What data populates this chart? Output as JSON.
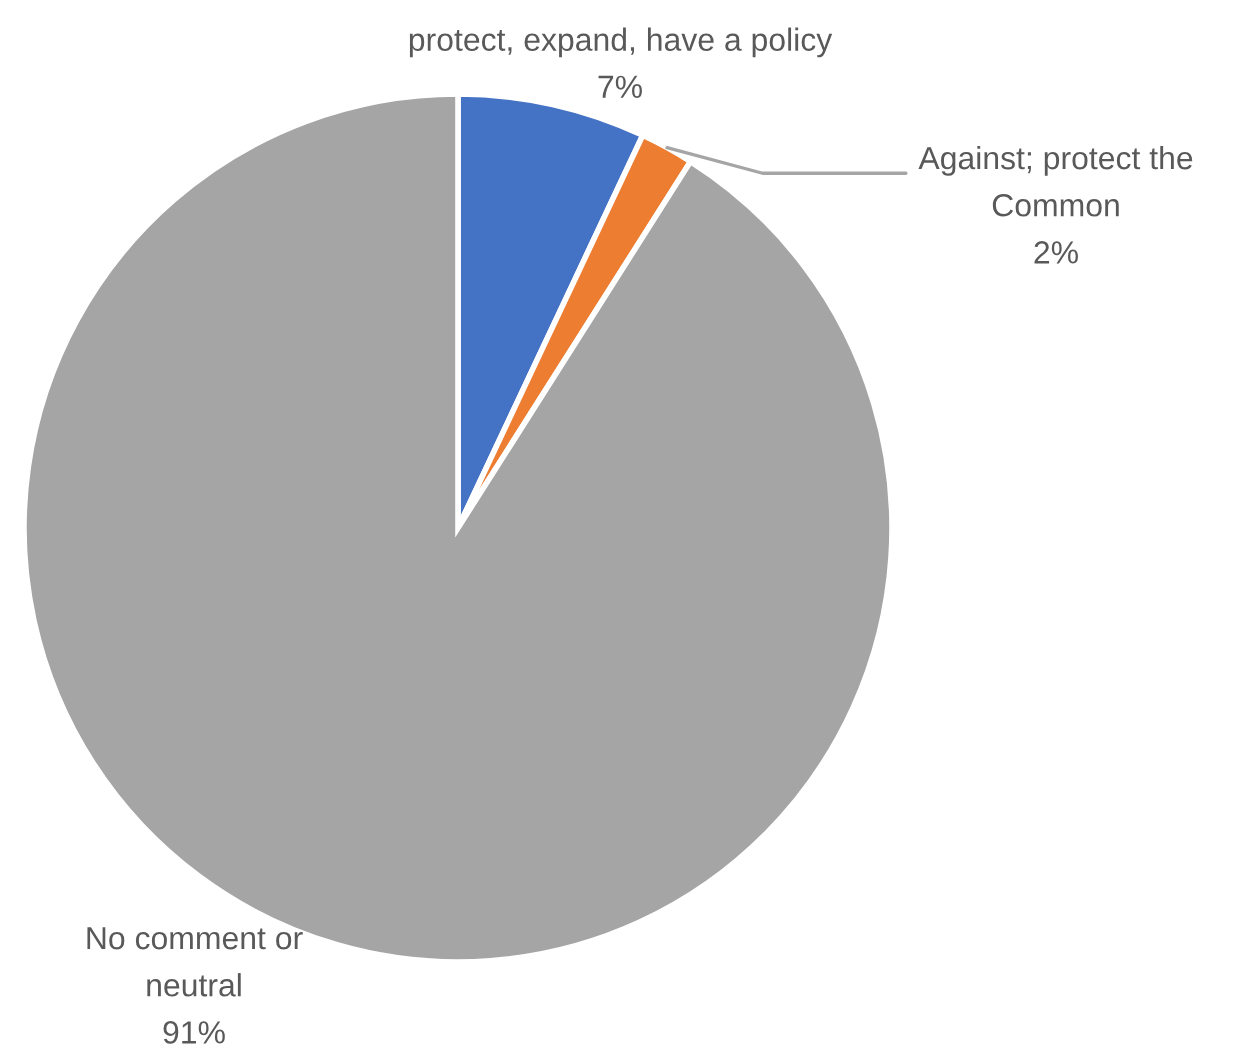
{
  "chart_data": {
    "type": "pie",
    "categories": [
      "protect, expand, have a policy",
      "Against; protect the Common",
      "No comment or neutral"
    ],
    "values": [
      7,
      2,
      91
    ],
    "colors": [
      "#4472c4",
      "#ed7d31",
      "#a5a5a5"
    ],
    "value_labels": [
      "7%",
      "2%",
      "91%"
    ]
  }
}
